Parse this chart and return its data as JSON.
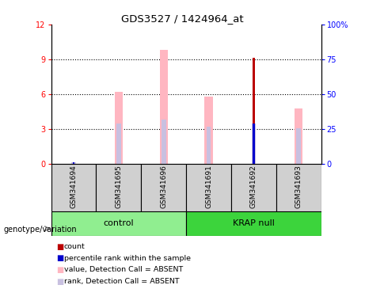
{
  "title": "GDS3527 / 1424964_at",
  "samples": [
    "GSM341694",
    "GSM341695",
    "GSM341696",
    "GSM341691",
    "GSM341692",
    "GSM341693"
  ],
  "ylim_left": [
    0,
    12
  ],
  "ylim_right": [
    0,
    100
  ],
  "yticks_left": [
    0,
    3,
    6,
    9,
    12
  ],
  "yticks_right": [
    0,
    25,
    50,
    75,
    100
  ],
  "yticklabels_right": [
    "0",
    "25",
    "50",
    "75",
    "100%"
  ],
  "pink_bars": [
    0.0,
    6.2,
    9.8,
    5.8,
    0.0,
    4.8
  ],
  "lavender_bars": [
    0.18,
    3.5,
    3.8,
    3.2,
    3.5,
    3.1
  ],
  "red_bars": [
    0.0,
    0.0,
    0.0,
    0.0,
    9.1,
    0.0
  ],
  "blue_bars": [
    0.15,
    0.0,
    0.0,
    0.0,
    3.5,
    0.0
  ],
  "color_pink": "#FFB6C1",
  "color_lavender": "#C8C0E0",
  "color_red": "#BB0000",
  "color_blue": "#0000CC",
  "color_group_control": "#90EE90",
  "color_group_krap": "#3CD43C",
  "color_grey_box": "#D0D0D0",
  "pink_bar_width": 0.18,
  "lavender_bar_width": 0.1,
  "red_bar_width": 0.05,
  "blue_bar_width": 0.05,
  "legend_items": [
    {
      "label": "count",
      "color": "#BB0000"
    },
    {
      "label": "percentile rank within the sample",
      "color": "#0000CC"
    },
    {
      "label": "value, Detection Call = ABSENT",
      "color": "#FFB6C1"
    },
    {
      "label": "rank, Detection Call = ABSENT",
      "color": "#C8C0E0"
    }
  ]
}
